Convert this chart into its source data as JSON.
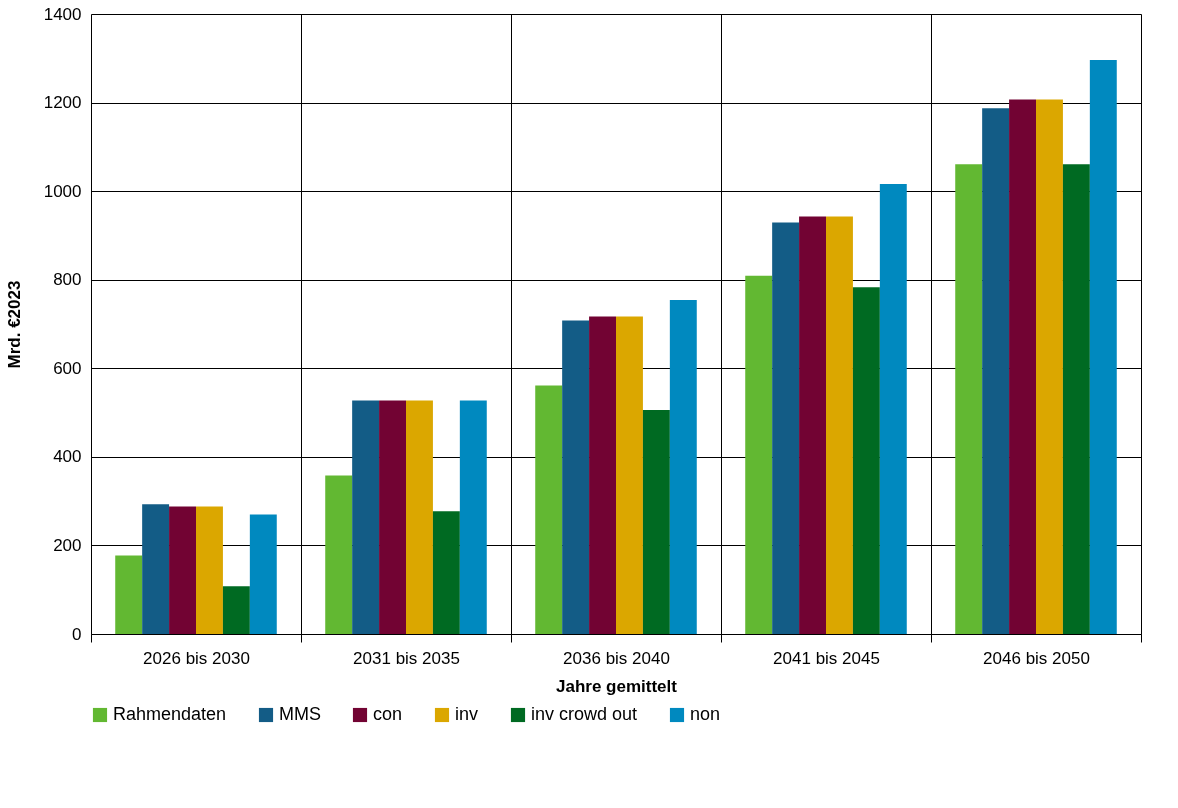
{
  "chart_data": {
    "type": "bar",
    "xlabel": "Jahre gemittelt",
    "ylabel": "Mrd. €2023",
    "categories": [
      "2026 bis 2030",
      "2031 bis 2035",
      "2036 bis 2040",
      "2041 bis 2045",
      "2046 bis 2050"
    ],
    "series": [
      {
        "name": "Rahmendaten",
        "color": "#62b832",
        "values": [
          177,
          358,
          561,
          809,
          1061
        ]
      },
      {
        "name": "MMS",
        "color": "#135c86",
        "values": [
          293,
          527,
          708,
          929,
          1187
        ]
      },
      {
        "name": "con",
        "color": "#720333",
        "values": [
          288,
          527,
          717,
          943,
          1207
        ]
      },
      {
        "name": "inv",
        "color": "#dba700",
        "values": [
          288,
          527,
          717,
          943,
          1207
        ]
      },
      {
        "name": "inv crowd out",
        "color": "#006a22",
        "values": [
          108,
          277,
          506,
          783,
          1061
        ]
      },
      {
        "name": "non",
        "color": "#0089bf",
        "values": [
          270,
          527,
          754,
          1016,
          1296
        ]
      }
    ],
    "ylim": [
      0,
      1400
    ],
    "yticks": [
      0,
      200,
      400,
      600,
      800,
      1000,
      1200,
      1400
    ],
    "grid": true,
    "legend": "bottom"
  }
}
